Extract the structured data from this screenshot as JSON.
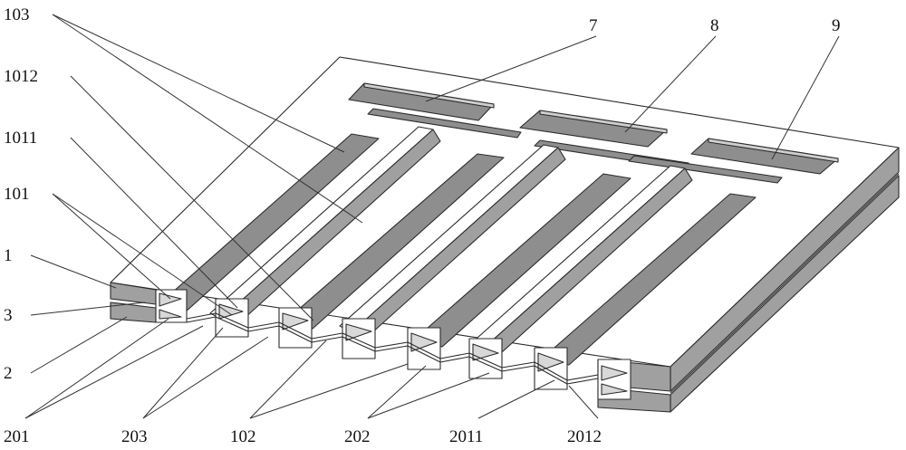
{
  "labels": {
    "l103": "103",
    "l1012": "1012",
    "l1011": "1011",
    "l101": "101",
    "l1": "1",
    "l3": "3",
    "l2": "2",
    "l201": "201",
    "l203": "203",
    "l102": "102",
    "l202": "202",
    "l2011": "2011",
    "l2012": "2012",
    "l7": "7",
    "l8": "8",
    "l9": "9"
  },
  "colors": {
    "face_top": "#ffffff",
    "face_side": "#9a9a9a",
    "face_inner": "#8c8c8c",
    "face_shadow": "#d8d8d8",
    "outline": "#2b2b2b"
  }
}
